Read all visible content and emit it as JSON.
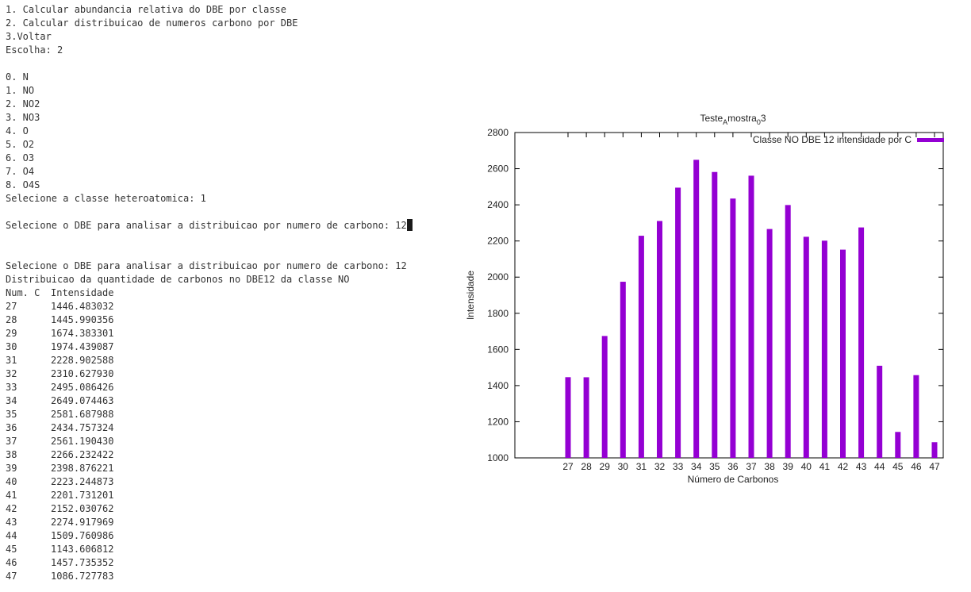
{
  "terminal": {
    "menu": [
      "1. Calcular abundancia relativa do DBE por classe",
      "2. Calcular distribuicao de numeros carbono por DBE",
      "3.Voltar",
      "Escolha: 2"
    ],
    "classes": [
      "0. N",
      "1. NO",
      "2. NO2",
      "3. NO3",
      "4. O",
      "5. O2",
      "6. O3",
      "7. O4",
      "8. O4S"
    ],
    "class_prompt": "Selecione a classe heteroatomica: 1",
    "dbe_input_prompt": "Selecione o DBE para analisar a distribuicao por numero de carbono: 12",
    "dbe_echo": "Selecione o DBE para analisar a distribuicao por numero de carbono: 12",
    "distribution_title": "Distribuicao da quantidade de carbonos no DBE12 da classe NO",
    "table_headers": [
      "Num. C",
      "Intensidade"
    ],
    "table_rows": [
      [
        "27",
        "1446.483032"
      ],
      [
        "28",
        "1445.990356"
      ],
      [
        "29",
        "1674.383301"
      ],
      [
        "30",
        "1974.439087"
      ],
      [
        "31",
        "2228.902588"
      ],
      [
        "32",
        "2310.627930"
      ],
      [
        "33",
        "2495.086426"
      ],
      [
        "34",
        "2649.074463"
      ],
      [
        "35",
        "2581.687988"
      ],
      [
        "36",
        "2434.757324"
      ],
      [
        "37",
        "2561.190430"
      ],
      [
        "38",
        "2266.232422"
      ],
      [
        "39",
        "2398.876221"
      ],
      [
        "40",
        "2223.244873"
      ],
      [
        "41",
        "2201.731201"
      ],
      [
        "42",
        "2152.030762"
      ],
      [
        "43",
        "2274.917969"
      ],
      [
        "44",
        "1509.760986"
      ],
      [
        "45",
        "1143.606812"
      ],
      [
        "46",
        "1457.735352"
      ],
      [
        "47",
        "1086.727783"
      ]
    ]
  },
  "chart_data": {
    "type": "bar",
    "title_main": "Teste",
    "title_sub1": "A",
    "title_mid": "mostra",
    "title_sub2": "0",
    "title_end": "3",
    "xlabel": "Número de Carbonos",
    "ylabel": "Intensidade",
    "legend": "Classe NO DBE 12 intensidade por C",
    "legend_position": "top-right",
    "bar_color": "#9400d3",
    "categories": [
      "27",
      "28",
      "29",
      "30",
      "31",
      "32",
      "33",
      "34",
      "35",
      "36",
      "37",
      "38",
      "39",
      "40",
      "41",
      "42",
      "43",
      "44",
      "45",
      "46",
      "47"
    ],
    "values": [
      1446.483032,
      1445.990356,
      1674.383301,
      1974.439087,
      2228.902588,
      2310.62793,
      2495.086426,
      2649.074463,
      2581.687988,
      2434.757324,
      2561.19043,
      2266.232422,
      2398.876221,
      2223.244873,
      2201.731201,
      2152.030762,
      2274.917969,
      1509.760986,
      1143.606812,
      1457.735352,
      1086.727783
    ],
    "ylim": [
      1000,
      2800
    ],
    "yticks": [
      "1000",
      "1200",
      "1400",
      "1600",
      "1800",
      "2000",
      "2200",
      "2400",
      "2600",
      "2800"
    ],
    "grid": false
  }
}
